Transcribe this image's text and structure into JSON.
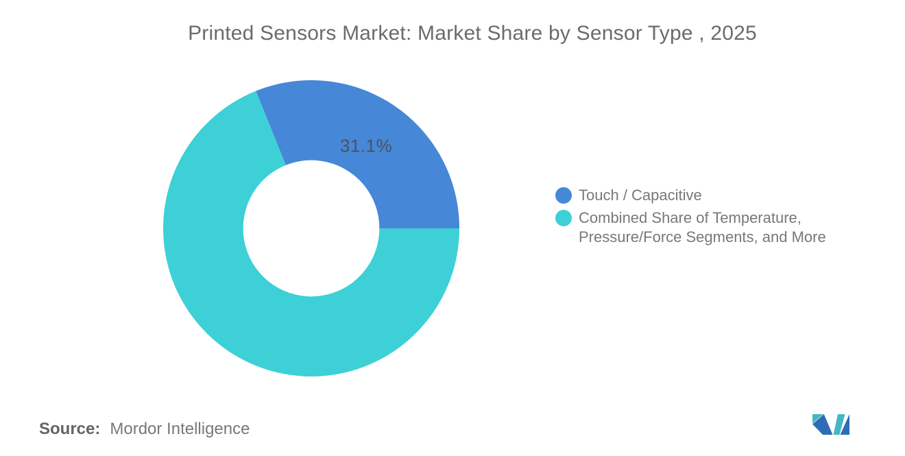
{
  "title": "Printed Sensors Market: Market Share by Sensor Type , 2025",
  "chart_data": {
    "type": "pie",
    "subtype": "donut",
    "title": "Printed Sensors Market: Market Share by Sensor Type , 2025",
    "categories": [
      "Touch / Capacitive",
      "Combined Share of Temperature, Pressure/Force Segments, and More"
    ],
    "values": [
      31.1,
      68.9
    ],
    "colors": [
      "#4687d8",
      "#3dd0d6"
    ],
    "labels": [
      "31.1%",
      ""
    ],
    "start_angle_deg": -21.96,
    "inner_radius_pct": 46,
    "legend_position": "right",
    "year": "2025"
  },
  "legend": {
    "items": [
      {
        "lines": [
          "Touch / Capacitive"
        ]
      },
      {
        "lines": [
          "Combined Share of Temperature,",
          "Pressure/Force Segments, and More"
        ]
      }
    ]
  },
  "source": {
    "label": "Source:",
    "value": "Mordor Intelligence"
  },
  "logo": {
    "name": "Mordor Intelligence logo",
    "teal": "#45b7c4",
    "blue": "#2d6db5"
  }
}
